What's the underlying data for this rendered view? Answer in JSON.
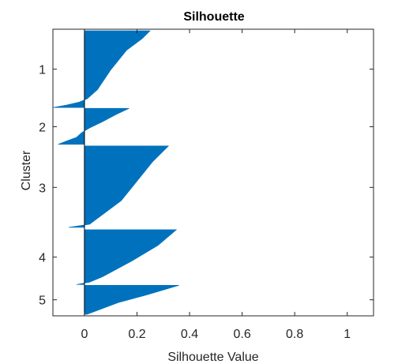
{
  "chart_data": {
    "type": "silhouette",
    "title": "Silhouette",
    "xlabel": "Silhouette Value",
    "ylabel": "Cluster",
    "xlim": [
      -0.12,
      1.1
    ],
    "xticks": [
      {
        "value": 0,
        "label": "0"
      },
      {
        "value": 0.2,
        "label": "0.2"
      },
      {
        "value": 0.4,
        "label": "0.4"
      },
      {
        "value": 0.6,
        "label": "0.6"
      },
      {
        "value": 0.8,
        "label": "0.8"
      },
      {
        "value": 1,
        "label": "1"
      }
    ],
    "clusters": [
      {
        "name": "1",
        "label": "1",
        "y_extent": [
          0,
          98
        ],
        "profile": [
          [
            0,
            0.25
          ],
          [
            10,
            0.22
          ],
          [
            25,
            0.16
          ],
          [
            50,
            0.1
          ],
          [
            75,
            0.05
          ],
          [
            87,
            0.01
          ],
          [
            91,
            -0.02
          ],
          [
            95,
            -0.07
          ],
          [
            98,
            -0.12
          ]
        ]
      },
      {
        "name": "2",
        "label": "2",
        "y_extent": [
          99,
          146
        ],
        "profile": [
          [
            0,
            0.17
          ],
          [
            8,
            0.12
          ],
          [
            17,
            0.07
          ],
          [
            25,
            0.02
          ],
          [
            31,
            -0.01
          ],
          [
            37,
            -0.03
          ],
          [
            42,
            -0.07
          ],
          [
            46,
            -0.1
          ]
        ]
      },
      {
        "name": "3",
        "label": "3",
        "y_extent": [
          147,
          253
        ],
        "profile": [
          [
            0,
            0.32
          ],
          [
            20,
            0.26
          ],
          [
            45,
            0.2
          ],
          [
            70,
            0.14
          ],
          [
            90,
            0.06
          ],
          [
            100,
            0.02
          ],
          [
            104,
            -0.06
          ]
        ]
      },
      {
        "name": "4",
        "label": "4",
        "y_extent": [
          254,
          324
        ],
        "profile": [
          [
            0,
            0.35
          ],
          [
            20,
            0.28
          ],
          [
            40,
            0.18
          ],
          [
            60,
            0.07
          ],
          [
            67,
            0.02
          ],
          [
            70,
            -0.03
          ]
        ]
      },
      {
        "name": "5",
        "label": "5",
        "y_extent": [
          325,
          362
        ],
        "profile": [
          [
            0,
            0.36
          ],
          [
            12,
            0.24
          ],
          [
            22,
            0.13
          ],
          [
            32,
            0.05
          ],
          [
            37,
            0.01
          ]
        ]
      }
    ],
    "bar_color": "#0072BD",
    "axis_color": "#262626",
    "background": "#FFFFFF",
    "y_range": [
      -2,
      364
    ]
  }
}
